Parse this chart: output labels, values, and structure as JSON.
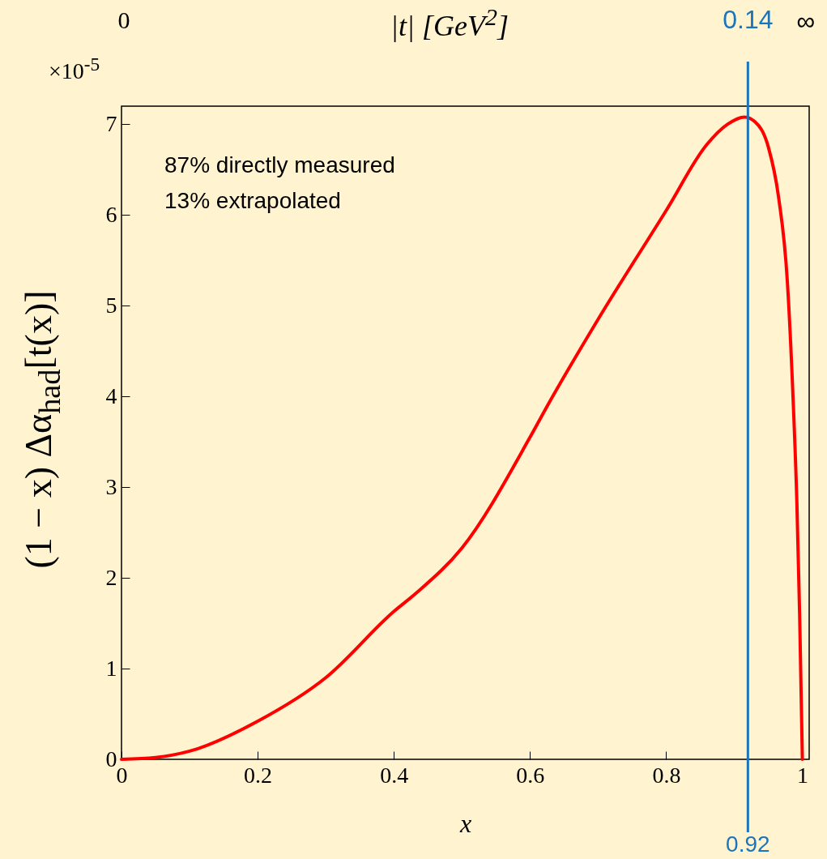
{
  "chart_data": {
    "type": "line",
    "xlabel": "x",
    "ylabel": "(1 − x) Δα$_{had}$[t(x)]",
    "annotations": [
      "×10$^{-5}$",
      "87% directly measured",
      "13% extrapolated",
      "|t| [GeV$^{2}$]",
      "0",
      "∞",
      "0.14"
    ],
    "xlim": [
      0,
      1.01
    ],
    "xticks": [
      0,
      0.2,
      0.4,
      0.6,
      0.8,
      1
    ],
    "ylim": [
      0,
      7.2
    ],
    "yticks": [
      0,
      1,
      2,
      3,
      4,
      5,
      6,
      7
    ],
    "series": [
      {
        "color": "#ff0000",
        "x": [
          0,
          0.05,
          0.1,
          0.2,
          0.3,
          0.4,
          0.434,
          0.5,
          0.6,
          0.625,
          0.7,
          0.8,
          0.86,
          0.89,
          0.915,
          0.93,
          0.95,
          0.965,
          0.978,
          0.986,
          0.992,
          0.996,
          1.0
        ],
        "values": [
          0,
          0.02,
          0.09,
          0.42,
          0.9,
          1.63,
          1.84,
          2.33,
          3.55,
          3.89,
          4.85,
          6.05,
          6.78,
          7.0,
          7.08,
          7.03,
          6.75,
          6.2,
          5.26,
          4.04,
          2.81,
          1.59,
          0
        ]
      }
    ],
    "ref_lines": [
      {
        "axis": "x",
        "value": 0.92,
        "label": "0.92",
        "color": "#1a75bc"
      }
    ],
    "grid": false
  }
}
